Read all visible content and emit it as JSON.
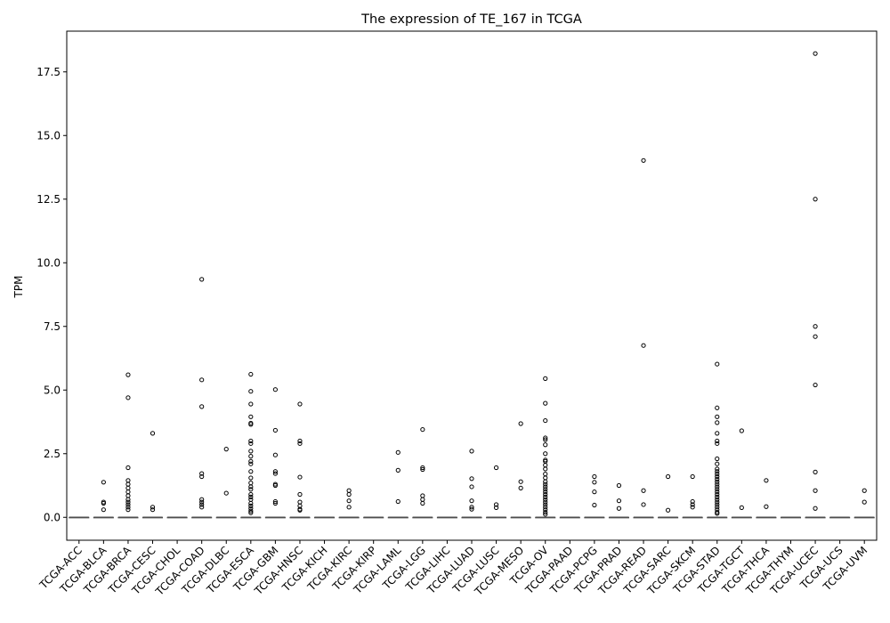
{
  "chart_data": {
    "type": "box",
    "title": "The expression of TE_167 in TCGA",
    "xlabel": "",
    "ylabel": "TPM",
    "ylim": [
      -0.9,
      19.1
    ],
    "yticks": [
      0.0,
      2.5,
      5.0,
      7.5,
      10.0,
      12.5,
      15.0,
      17.5
    ],
    "ytick_labels": [
      "0.0",
      "2.5",
      "5.0",
      "7.5",
      "10.0",
      "12.5",
      "15.0",
      "17.5"
    ],
    "grid": false,
    "categories": [
      "TCGA-ACC",
      "TCGA-BLCA",
      "TCGA-BRCA",
      "TCGA-CESC",
      "TCGA-CHOL",
      "TCGA-COAD",
      "TCGA-DLBC",
      "TCGA-ESCA",
      "TCGA-GBM",
      "TCGA-HNSC",
      "TCGA-KICH",
      "TCGA-KIRC",
      "TCGA-KIRP",
      "TCGA-LAML",
      "TCGA-LGG",
      "TCGA-LIHC",
      "TCGA-LUAD",
      "TCGA-LUSC",
      "TCGA-MESO",
      "TCGA-OV",
      "TCGA-PAAD",
      "TCGA-PCPG",
      "TCGA-PRAD",
      "TCGA-READ",
      "TCGA-SARC",
      "TCGA-SKCM",
      "TCGA-STAD",
      "TCGA-TGCT",
      "TCGA-THCA",
      "TCGA-THYM",
      "TCGA-UCEC",
      "TCGA-UCS",
      "TCGA-UVM"
    ],
    "median": [
      0,
      0,
      0,
      0,
      0,
      0,
      0,
      0,
      0,
      0,
      0,
      0,
      0,
      0,
      0,
      0,
      0,
      0,
      0,
      0,
      0,
      0,
      0,
      0,
      0,
      0,
      0,
      0,
      0,
      0,
      0,
      0,
      0
    ],
    "q1": [
      0,
      0,
      0,
      0,
      0,
      0,
      0,
      0,
      0,
      0,
      0,
      0,
      0,
      0,
      0,
      0,
      0,
      0,
      0,
      0,
      0,
      0,
      0,
      0,
      0,
      0,
      0,
      0,
      0,
      0,
      0,
      0,
      0
    ],
    "q3": [
      0,
      0,
      0,
      0,
      0,
      0,
      0,
      0,
      0,
      0,
      0,
      0,
      0,
      0,
      0,
      0,
      0,
      0,
      0,
      0,
      0,
      0,
      0,
      0,
      0,
      0,
      0,
      0,
      0,
      0,
      0,
      0,
      0
    ],
    "outliers": [
      [],
      [
        1.38,
        0.6,
        0.55,
        0.3
      ],
      [
        5.6,
        4.7,
        1.95,
        1.45,
        1.3,
        1.15,
        1.0,
        0.85,
        0.7,
        0.6,
        0.5,
        0.4,
        0.3
      ],
      [
        3.3,
        0.4,
        0.3
      ],
      [],
      [
        9.35,
        5.4,
        4.35,
        1.72,
        1.6,
        0.7,
        0.6,
        0.5,
        0.4
      ],
      [
        2.68,
        0.95
      ],
      [
        5.62,
        4.95,
        4.45,
        3.95,
        3.7,
        3.65,
        3.0,
        2.9,
        2.6,
        2.4,
        2.2,
        2.1,
        1.8,
        1.55,
        1.35,
        1.2,
        1.1,
        0.9,
        0.8,
        0.7,
        0.55,
        0.45,
        0.35,
        0.25,
        0.18
      ],
      [
        5.02,
        3.42,
        2.45,
        1.8,
        1.72,
        1.3,
        1.25,
        0.62,
        0.55
      ],
      [
        4.45,
        3.0,
        2.9,
        1.58,
        0.9,
        0.6,
        0.45,
        0.32,
        0.28
      ],
      [],
      [
        1.05,
        0.9,
        0.65,
        0.4
      ],
      [],
      [
        2.55,
        1.85,
        0.62
      ],
      [
        3.45,
        1.95,
        1.88,
        0.85,
        0.7,
        0.55
      ],
      [],
      [
        2.6,
        1.52,
        1.2,
        0.65,
        0.4,
        0.32
      ],
      [
        1.95,
        0.5,
        0.38
      ],
      [
        3.68,
        1.4,
        1.15
      ],
      [
        5.45,
        4.48,
        3.8,
        3.12,
        3.05,
        2.85,
        2.5,
        2.25,
        2.2,
        2.05,
        1.9,
        1.7,
        1.55,
        1.4,
        1.3,
        1.2,
        1.1,
        1.0,
        0.9,
        0.8,
        0.7,
        0.6,
        0.5,
        0.4,
        0.3,
        0.2,
        0.12
      ],
      [],
      [
        1.6,
        1.38,
        1.0,
        0.48
      ],
      [
        1.25,
        0.65,
        0.35
      ],
      [
        14.02,
        6.75,
        1.05,
        0.5
      ],
      [
        1.6,
        0.28
      ],
      [
        1.6,
        0.62,
        0.5,
        0.4
      ],
      [
        6.02,
        4.3,
        3.95,
        3.72,
        3.3,
        3.0,
        2.9,
        2.3,
        2.1,
        1.9,
        1.8,
        1.7,
        1.6,
        1.5,
        1.4,
        1.3,
        1.2,
        1.1,
        1.0,
        0.9,
        0.8,
        0.7,
        0.6,
        0.5,
        0.4,
        0.3,
        0.2,
        0.15
      ],
      [
        3.4,
        0.38
      ],
      [
        1.45,
        0.42
      ],
      [],
      [
        18.22,
        12.5,
        7.5,
        7.1,
        5.2,
        1.78,
        1.05,
        0.35
      ],
      [],
      [
        1.05,
        0.6
      ]
    ]
  }
}
